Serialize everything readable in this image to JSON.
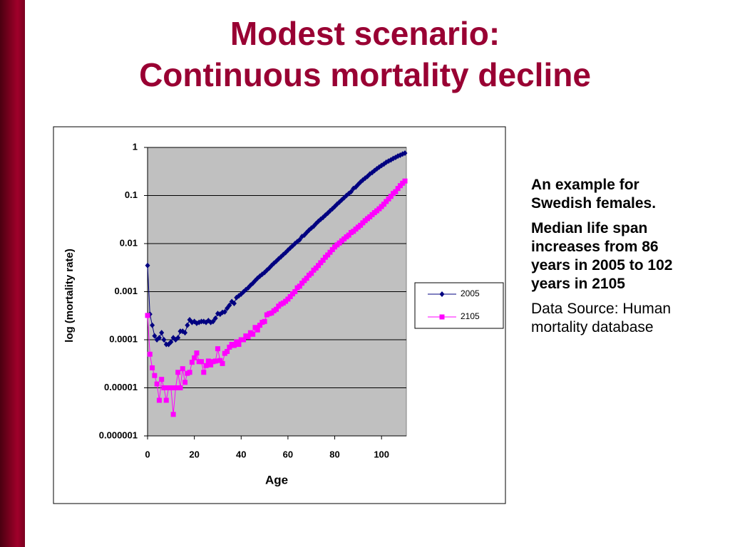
{
  "slide": {
    "title_lines": [
      "Modest scenario:",
      "Continuous mortality decline"
    ],
    "notes": [
      "An example for Swedish females.",
      "Median life span increases from 86 years in 2005 to 102 years in 2105",
      "Data Source: Human mortality database"
    ]
  },
  "chart_data": {
    "type": "line",
    "x_label": "Age",
    "y_label": "log (mortality rate)",
    "log_y": true,
    "grid": true,
    "legend": "right",
    "plot_background": "#c0c0c0",
    "xlim": [
      0,
      110
    ],
    "xticks": [
      0,
      20,
      40,
      60,
      80,
      100
    ],
    "ylim": [
      1e-06,
      1
    ],
    "yticks": [
      1e-06,
      1e-05,
      0.0001,
      0.001,
      0.01,
      0.1,
      1
    ],
    "x": [
      0,
      1,
      2,
      3,
      4,
      5,
      6,
      7,
      8,
      9,
      10,
      11,
      12,
      13,
      14,
      15,
      16,
      17,
      18,
      19,
      20,
      21,
      22,
      23,
      24,
      25,
      26,
      27,
      28,
      29,
      30,
      31,
      32,
      33,
      34,
      35,
      36,
      37,
      38,
      39,
      40,
      41,
      42,
      43,
      44,
      45,
      46,
      47,
      48,
      49,
      50,
      51,
      52,
      53,
      54,
      55,
      56,
      57,
      58,
      59,
      60,
      61,
      62,
      63,
      64,
      65,
      66,
      67,
      68,
      69,
      70,
      71,
      72,
      73,
      74,
      75,
      76,
      77,
      78,
      79,
      80,
      81,
      82,
      83,
      84,
      85,
      86,
      87,
      88,
      89,
      90,
      91,
      92,
      93,
      94,
      95,
      96,
      97,
      98,
      99,
      100,
      101,
      102,
      103,
      104,
      105,
      106,
      107,
      108,
      109,
      110
    ],
    "series": [
      {
        "name": "2005",
        "color": "#000080",
        "marker": "diamond",
        "values": [
          0.0035,
          0.00034,
          0.0002,
          0.00012,
          0.0001,
          0.00011,
          0.00014,
          0.0001,
          8e-05,
          8e-05,
          9e-05,
          0.00011,
          0.0001,
          0.00011,
          0.00015,
          0.00015,
          0.00014,
          0.0002,
          0.00026,
          0.00023,
          0.00024,
          0.00022,
          0.00023,
          0.00024,
          0.00024,
          0.00023,
          0.00025,
          0.00023,
          0.00024,
          0.00028,
          0.00035,
          0.00034,
          0.00037,
          0.00038,
          0.00045,
          0.00052,
          0.00062,
          0.00057,
          0.00075,
          0.00082,
          0.00089,
          0.00099,
          0.0011,
          0.0012,
          0.00136,
          0.0015,
          0.0017,
          0.0019,
          0.0021,
          0.0023,
          0.0025,
          0.0028,
          0.0031,
          0.0035,
          0.0039,
          0.0043,
          0.0048,
          0.0053,
          0.0059,
          0.0065,
          0.0073,
          0.0081,
          0.009,
          0.01,
          0.011,
          0.012,
          0.014,
          0.015,
          0.017,
          0.019,
          0.021,
          0.023,
          0.026,
          0.029,
          0.032,
          0.035,
          0.039,
          0.043,
          0.048,
          0.053,
          0.059,
          0.066,
          0.073,
          0.081,
          0.09,
          0.1,
          0.11,
          0.12,
          0.14,
          0.15,
          0.17,
          0.19,
          0.21,
          0.23,
          0.25,
          0.28,
          0.3,
          0.33,
          0.36,
          0.39,
          0.42,
          0.45,
          0.49,
          0.52,
          0.55,
          0.59,
          0.62,
          0.66,
          0.69,
          0.73,
          0.76
        ]
      },
      {
        "name": "2105",
        "color": "#ff00ff",
        "marker": "square",
        "values": [
          0.00032,
          5e-05,
          2.6e-05,
          1.8e-05,
          1.2e-05,
          5.5e-06,
          1.5e-05,
          1e-05,
          5.5e-06,
          1e-05,
          1e-05,
          2.8e-06,
          1e-05,
          2.1e-05,
          1e-05,
          2.5e-05,
          1.3e-05,
          2e-05,
          2.1e-05,
          3.4e-05,
          4.2e-05,
          5.3e-05,
          3.5e-05,
          3.5e-05,
          2.1e-05,
          2.9e-05,
          3.6e-05,
          3e-05,
          3.5e-05,
          3.6e-05,
          6.5e-05,
          3.7e-05,
          3.2e-05,
          5.2e-05,
          5.7e-05,
          7e-05,
          8e-05,
          7.6e-05,
          9e-05,
          8e-05,
          0.0001,
          0.0001,
          0.00012,
          0.000115,
          0.00014,
          0.00013,
          0.00018,
          0.00016,
          0.0002,
          0.00023,
          0.00024,
          0.00033,
          0.00035,
          0.00036,
          0.0004,
          0.00043,
          0.0005,
          0.00055,
          0.00058,
          0.00063,
          0.0007,
          0.00079,
          0.0009,
          0.001,
          0.0012,
          0.0013,
          0.0015,
          0.0017,
          0.0019,
          0.0022,
          0.0024,
          0.0028,
          0.0031,
          0.0035,
          0.004,
          0.0045,
          0.0052,
          0.0058,
          0.0066,
          0.0075,
          0.0085,
          0.0094,
          0.0103,
          0.0114,
          0.0125,
          0.0138,
          0.015,
          0.017,
          0.018,
          0.02,
          0.022,
          0.024,
          0.027,
          0.03,
          0.033,
          0.036,
          0.04,
          0.044,
          0.048,
          0.053,
          0.059,
          0.066,
          0.075,
          0.085,
          0.096,
          0.11,
          0.12,
          0.14,
          0.16,
          0.18,
          0.2
        ]
      }
    ]
  }
}
